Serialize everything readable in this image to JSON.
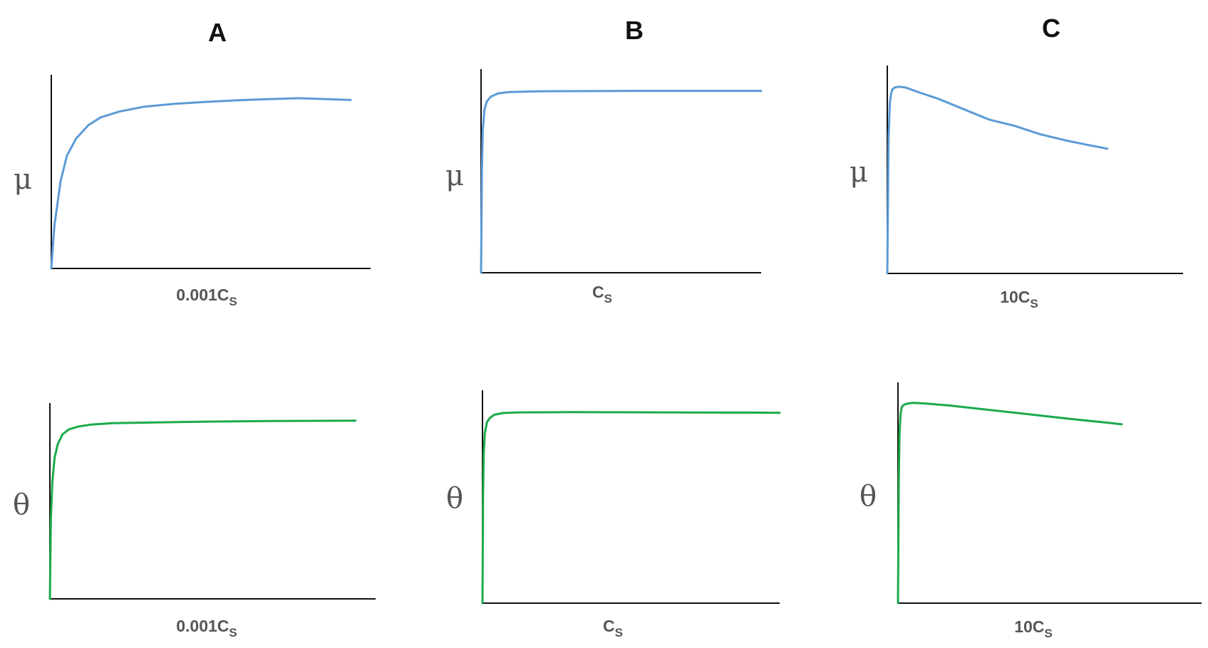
{
  "columns": [
    {
      "title": "A"
    },
    {
      "title": "B"
    },
    {
      "title": "C"
    }
  ],
  "colors": {
    "mu": "#5b9bd5",
    "theta": "#1aaa4a"
  },
  "chart_data": [
    {
      "type": "line",
      "column": "A",
      "ylabel": "μ",
      "xlabel": "0.001C",
      "xlabel_sub": "S",
      "xlim": [
        0,
        1
      ],
      "ylim": [
        0,
        1
      ],
      "color": "#5b9bd5",
      "series": [
        {
          "x": [
            0,
            0.01,
            0.03,
            0.05,
            0.08,
            0.12,
            0.16,
            0.22,
            0.3,
            0.4,
            0.5,
            0.6,
            0.7,
            0.8,
            0.97
          ],
          "y": [
            0,
            0.22,
            0.45,
            0.58,
            0.67,
            0.74,
            0.78,
            0.81,
            0.835,
            0.85,
            0.86,
            0.868,
            0.874,
            0.879,
            0.87
          ]
        }
      ]
    },
    {
      "type": "line",
      "column": "B",
      "ylabel": "μ",
      "xlabel": "C",
      "xlabel_sub": "S",
      "xlim": [
        0,
        1
      ],
      "ylim": [
        0,
        1
      ],
      "color": "#5b9bd5",
      "series": [
        {
          "x": [
            0,
            0.003,
            0.006,
            0.012,
            0.02,
            0.035,
            0.06,
            0.1,
            0.2,
            0.4,
            0.6,
            0.8,
            1.0
          ],
          "y": [
            0,
            0.5,
            0.7,
            0.8,
            0.84,
            0.865,
            0.88,
            0.887,
            0.891,
            0.892,
            0.893,
            0.893,
            0.893
          ]
        }
      ]
    },
    {
      "type": "line",
      "column": "C",
      "ylabel": "μ",
      "xlabel": "10C",
      "xlabel_sub": "S",
      "xlim": [
        0,
        1
      ],
      "ylim": [
        0,
        1
      ],
      "color": "#5b9bd5",
      "series": [
        {
          "x": [
            0,
            0.005,
            0.01,
            0.015,
            0.02,
            0.03,
            0.045,
            0.07,
            0.12,
            0.2,
            0.3,
            0.4,
            0.5,
            0.6,
            0.7,
            0.8,
            0.865
          ],
          "y": [
            0,
            0.65,
            0.82,
            0.865,
            0.885,
            0.895,
            0.898,
            0.895,
            0.873,
            0.84,
            0.79,
            0.74,
            0.71,
            0.67,
            0.64,
            0.615,
            0.6
          ]
        }
      ]
    },
    {
      "type": "line",
      "column": "A",
      "ylabel": "θ",
      "xlabel": "0.001C",
      "xlabel_sub": "S",
      "xlim": [
        0,
        1
      ],
      "ylim": [
        0,
        1
      ],
      "color": "#1aaa4a",
      "series": [
        {
          "x": [
            0,
            0.003,
            0.008,
            0.015,
            0.025,
            0.04,
            0.06,
            0.09,
            0.13,
            0.2,
            0.3,
            0.5,
            0.7,
            0.97
          ],
          "y": [
            0,
            0.4,
            0.6,
            0.72,
            0.79,
            0.84,
            0.865,
            0.88,
            0.89,
            0.897,
            0.9,
            0.905,
            0.908,
            0.91
          ]
        }
      ]
    },
    {
      "type": "line",
      "column": "B",
      "ylabel": "θ",
      "xlabel": "C",
      "xlabel_sub": "S",
      "xlim": [
        0,
        1
      ],
      "ylim": [
        0,
        1
      ],
      "color": "#1aaa4a",
      "series": [
        {
          "x": [
            0,
            0.002,
            0.004,
            0.008,
            0.015,
            0.025,
            0.04,
            0.07,
            0.12,
            0.3,
            0.6,
            0.9,
            1.0
          ],
          "y": [
            0,
            0.5,
            0.7,
            0.8,
            0.85,
            0.87,
            0.885,
            0.893,
            0.896,
            0.897,
            0.896,
            0.895,
            0.894
          ]
        }
      ]
    },
    {
      "type": "line",
      "column": "C",
      "ylabel": "θ",
      "xlabel": "10C",
      "xlabel_sub": "S",
      "xlim": [
        0,
        1
      ],
      "ylim": [
        0,
        1
      ],
      "color": "#1aaa4a",
      "series": [
        {
          "x": [
            0,
            0.003,
            0.006,
            0.01,
            0.015,
            0.025,
            0.04,
            0.06,
            0.1,
            0.2,
            0.3,
            0.4,
            0.5,
            0.6,
            0.7,
            0.8,
            0.86
          ],
          "y": [
            0,
            0.55,
            0.77,
            0.86,
            0.89,
            0.9,
            0.905,
            0.907,
            0.905,
            0.895,
            0.882,
            0.869,
            0.856,
            0.843,
            0.83,
            0.818,
            0.81
          ]
        }
      ]
    }
  ]
}
